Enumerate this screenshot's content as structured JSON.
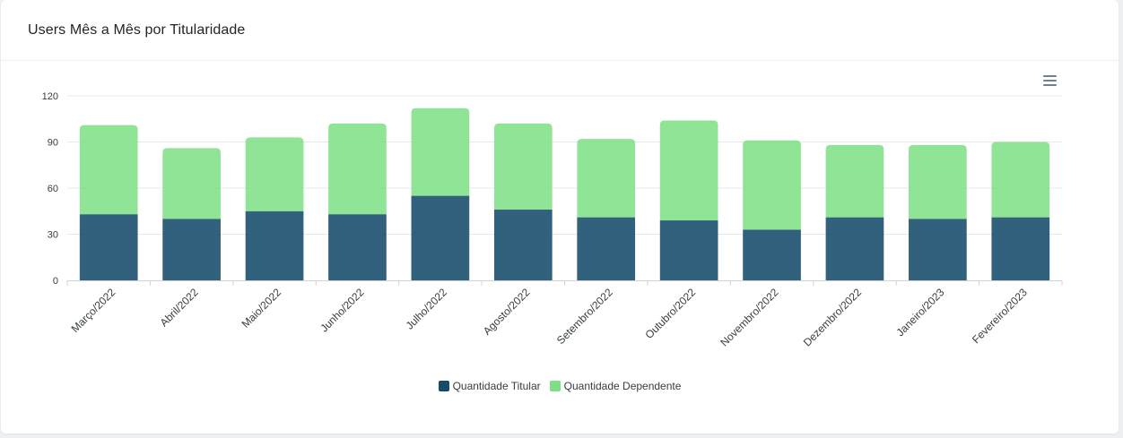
{
  "card": {
    "title": "Users Mês a Mês por Titularidade"
  },
  "toolbar": {
    "menu_icon": "hamburger-menu-icon"
  },
  "colors": {
    "titular": "#164b6b",
    "dependente": "#7ddf83",
    "grid": "#e6e8eb",
    "axis": "#d0d4d8",
    "label": "#373d3f"
  },
  "chart_data": {
    "type": "bar",
    "stacked": true,
    "categories": [
      "Março/2022",
      "Abril/2022",
      "Maio/2022",
      "Junho/2022",
      "Julho/2022",
      "Agosto/2022",
      "Setembro/2022",
      "Outubro/2022",
      "Novembro/2022",
      "Dezembro/2022",
      "Janeiro/2023",
      "Fevereiro/2023"
    ],
    "series": [
      {
        "name": "Quantidade Titular",
        "values": [
          43,
          40,
          45,
          43,
          55,
          46,
          41,
          39,
          33,
          41,
          40,
          41
        ]
      },
      {
        "name": "Quantidade Dependente",
        "values": [
          58,
          46,
          48,
          59,
          57,
          56,
          51,
          65,
          58,
          47,
          48,
          49
        ]
      }
    ],
    "title": "Users Mês a Mês por Titularidade",
    "xlabel": "",
    "ylabel": "",
    "ylim": [
      0,
      120
    ],
    "yticks": [
      0,
      30,
      60,
      90,
      120
    ],
    "grid": true,
    "legend": "bottom-center"
  }
}
